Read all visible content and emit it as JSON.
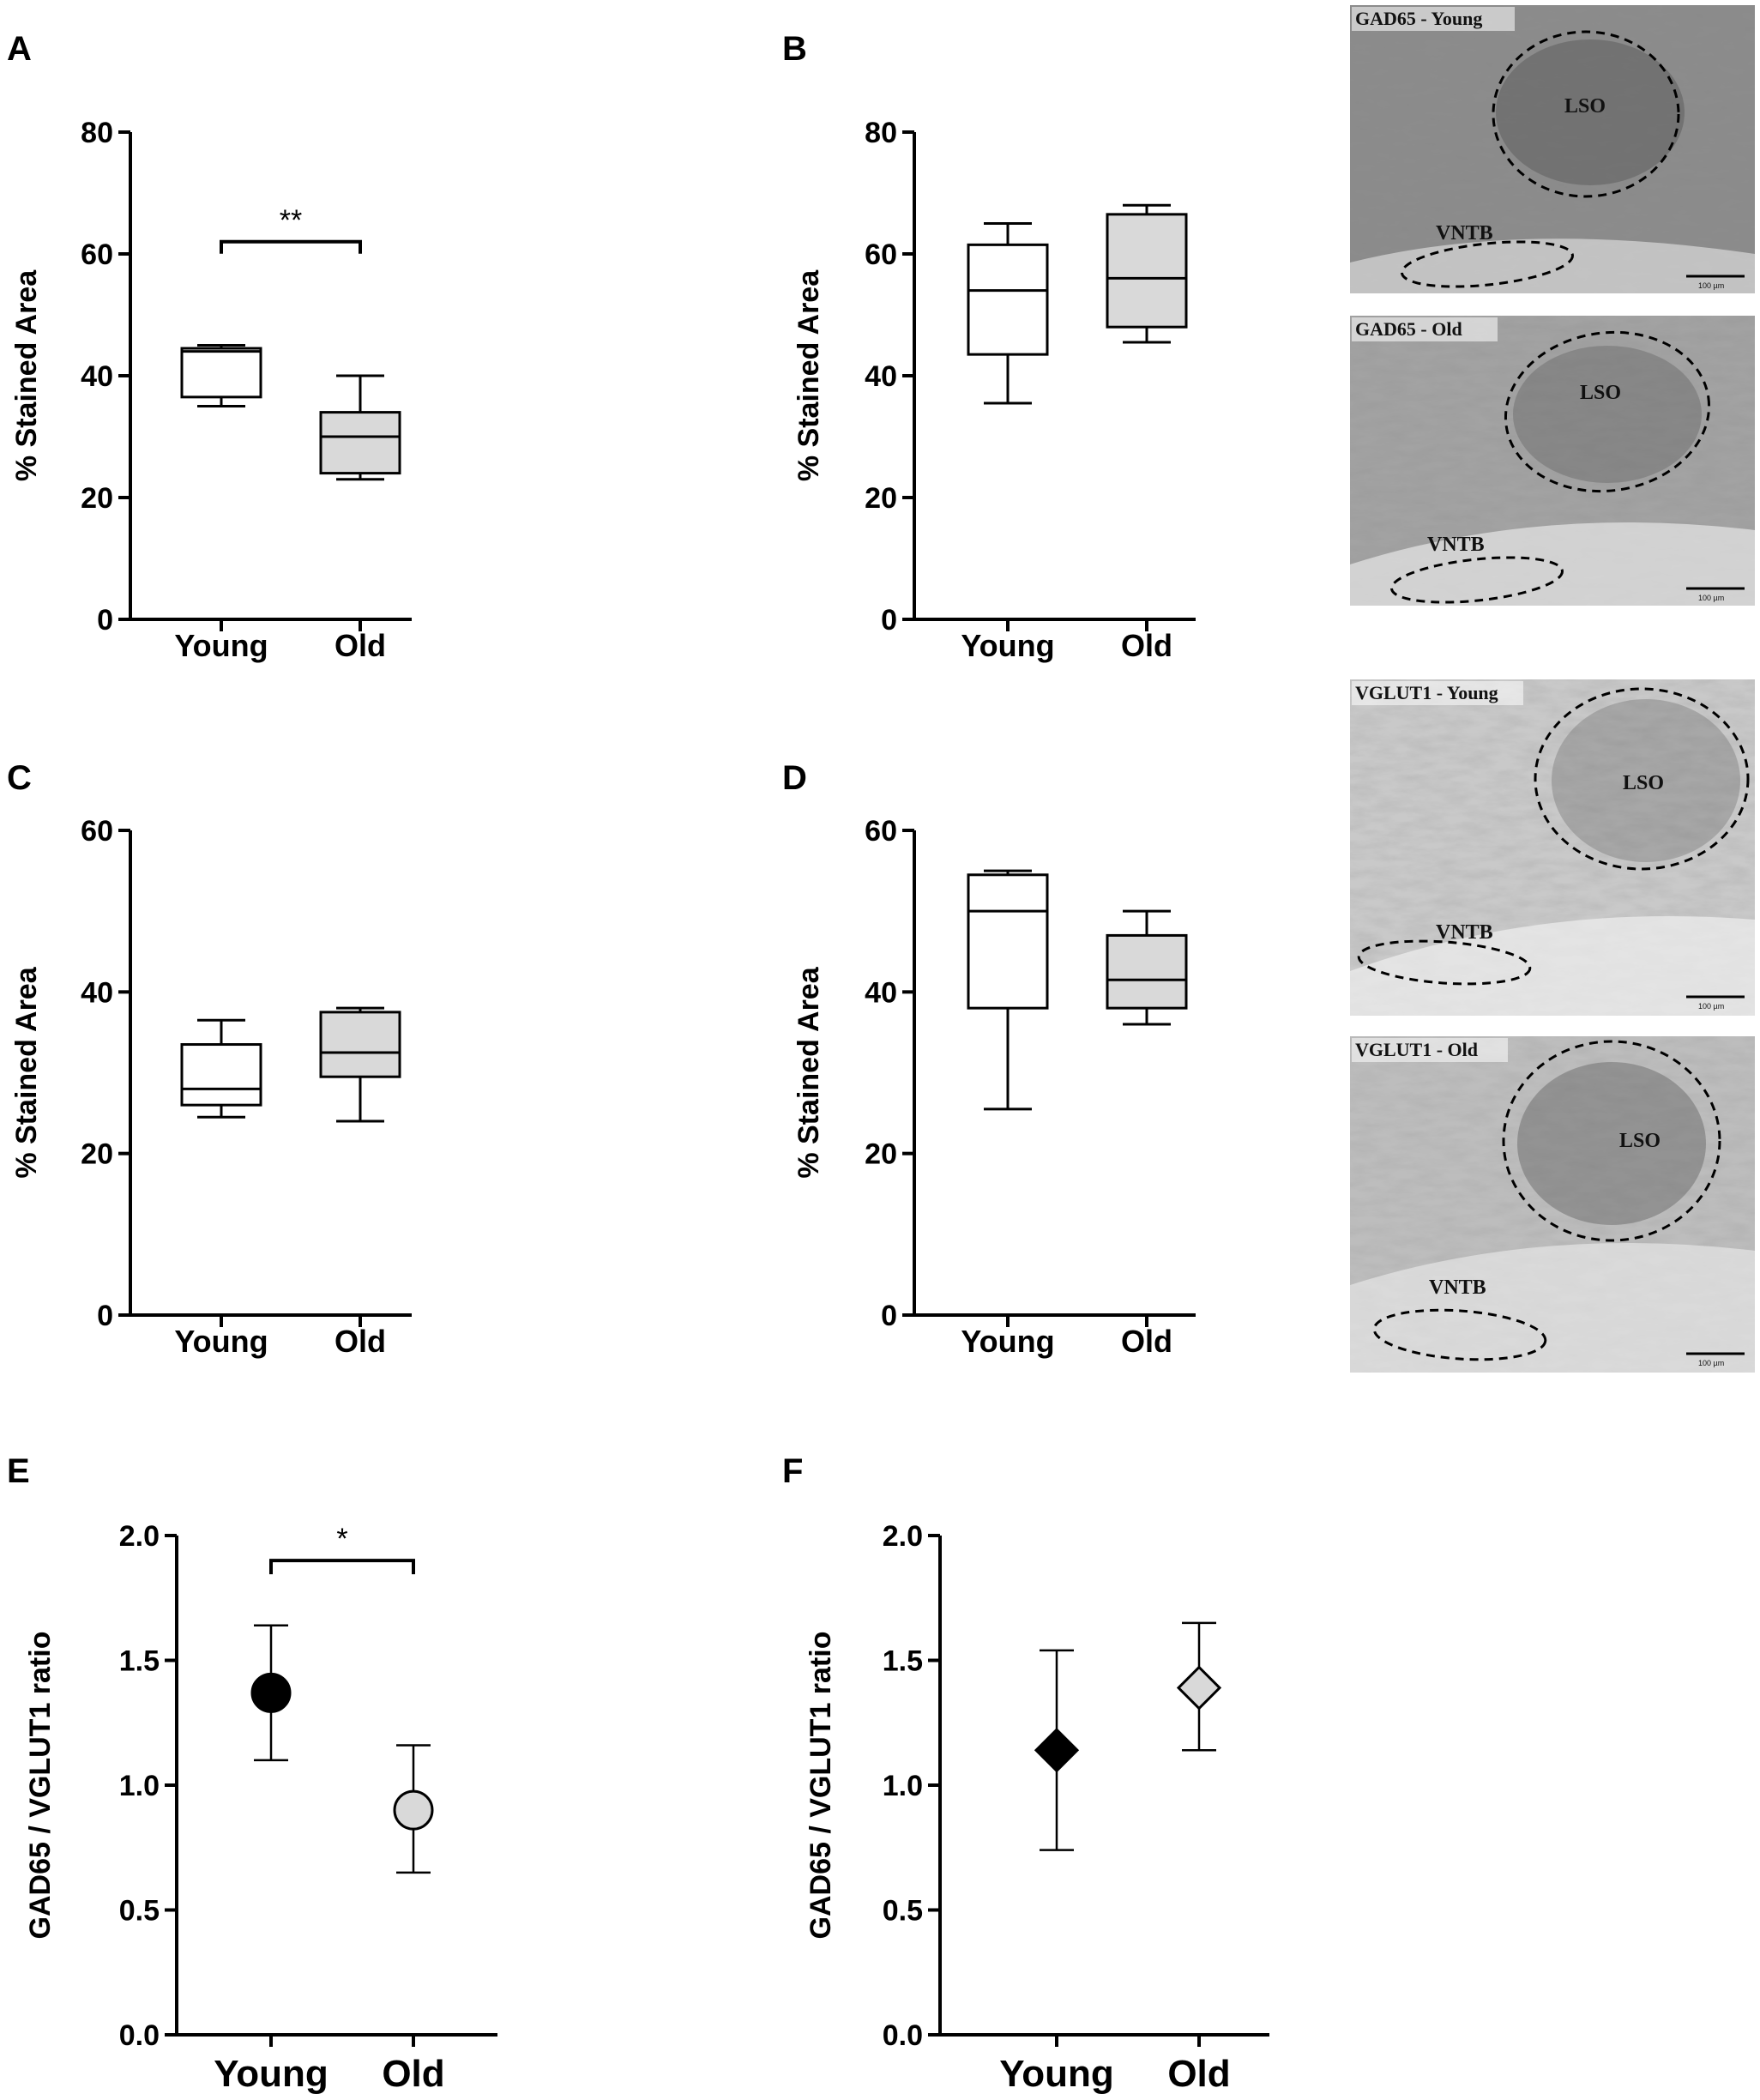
{
  "colors": {
    "young_fill": "#ffffff",
    "old_fill": "#d9d9d9",
    "young_marker": "#000000",
    "old_marker": "#d9d9d9",
    "stroke": "#000000"
  },
  "panels": {
    "A": {
      "letter": "A"
    },
    "B": {
      "letter": "B"
    },
    "C": {
      "letter": "C"
    },
    "D": {
      "letter": "D"
    },
    "E": {
      "letter": "E"
    },
    "F": {
      "letter": "F"
    }
  },
  "images": [
    {
      "title": "GAD65 - Young",
      "lso": "LSO",
      "vntb": "VNTB",
      "scale": "100 µm",
      "tone": "dark"
    },
    {
      "title": "GAD65 - Old",
      "lso": "LSO",
      "vntb": "VNTB",
      "scale": "100 µm",
      "tone": "medium"
    },
    {
      "title": "VGLUT1 - Young",
      "lso": "LSO",
      "vntb": "VNTB",
      "scale": "100 µm",
      "tone": "light"
    },
    {
      "title": "VGLUT1 - Old",
      "lso": "LSO",
      "vntb": "VNTB",
      "scale": "100 µm",
      "tone": "light"
    }
  ],
  "chart_data": [
    {
      "panel": "A",
      "type": "box",
      "ylabel": "% Stained Area",
      "categories": [
        "Young",
        "Old"
      ],
      "ylim": [
        0,
        80
      ],
      "yticks": [
        0,
        20,
        40,
        60,
        80
      ],
      "boxes": [
        {
          "category": "Young",
          "min": 35,
          "q1": 36.5,
          "median": 44,
          "q3": 44.5,
          "max": 45
        },
        {
          "category": "Old",
          "min": 23,
          "q1": 24,
          "median": 30,
          "q3": 34,
          "max": 40
        }
      ],
      "significance": {
        "text": "**",
        "between": [
          "Young",
          "Old"
        ],
        "y": 62
      }
    },
    {
      "panel": "B",
      "type": "box",
      "ylabel": "% Stained Area",
      "categories": [
        "Young",
        "Old"
      ],
      "ylim": [
        0,
        80
      ],
      "yticks": [
        0,
        20,
        40,
        60,
        80
      ],
      "boxes": [
        {
          "category": "Young",
          "min": 35.5,
          "q1": 43.5,
          "median": 54,
          "q3": 61.5,
          "max": 65
        },
        {
          "category": "Old",
          "min": 45.5,
          "q1": 48,
          "median": 56,
          "q3": 66.5,
          "max": 68
        }
      ]
    },
    {
      "panel": "C",
      "type": "box",
      "ylabel": "% Stained Area",
      "categories": [
        "Young",
        "Old"
      ],
      "ylim": [
        0,
        60
      ],
      "yticks": [
        0,
        20,
        40,
        60
      ],
      "boxes": [
        {
          "category": "Young",
          "min": 24.5,
          "q1": 26,
          "median": 28,
          "q3": 33.5,
          "max": 36.5
        },
        {
          "category": "Old",
          "min": 24,
          "q1": 29.5,
          "median": 32.5,
          "q3": 37.5,
          "max": 38
        }
      ]
    },
    {
      "panel": "D",
      "type": "box",
      "ylabel": "% Stained Area",
      "categories": [
        "Young",
        "Old"
      ],
      "ylim": [
        0,
        60
      ],
      "yticks": [
        0,
        20,
        40,
        60
      ],
      "boxes": [
        {
          "category": "Young",
          "min": 25.5,
          "q1": 38,
          "median": 50,
          "q3": 54.5,
          "max": 55
        },
        {
          "category": "Old",
          "min": 36,
          "q1": 38,
          "median": 41.5,
          "q3": 47,
          "max": 50
        }
      ]
    },
    {
      "panel": "E",
      "type": "scatter",
      "marker": "circle",
      "ylabel": "GAD65 / VGLUT1 ratio",
      "categories": [
        "Young",
        "Old"
      ],
      "ylim": [
        0,
        2
      ],
      "yticks": [
        "0.0",
        "0.5",
        "1.0",
        "1.5",
        "2.0"
      ],
      "points": [
        {
          "category": "Young",
          "mean": 1.37,
          "lower": 1.1,
          "upper": 1.64
        },
        {
          "category": "Old",
          "mean": 0.9,
          "lower": 0.65,
          "upper": 1.16
        }
      ],
      "significance": {
        "text": "*",
        "between": [
          "Young",
          "Old"
        ],
        "y": 1.9
      }
    },
    {
      "panel": "F",
      "type": "scatter",
      "marker": "diamond",
      "ylabel": "GAD65 / VGLUT1 ratio",
      "categories": [
        "Young",
        "Old"
      ],
      "ylim": [
        0,
        2
      ],
      "yticks": [
        "0.0",
        "0.5",
        "1.0",
        "1.5",
        "2.0"
      ],
      "points": [
        {
          "category": "Young",
          "mean": 1.14,
          "lower": 0.74,
          "upper": 1.54
        },
        {
          "category": "Old",
          "mean": 1.39,
          "lower": 1.14,
          "upper": 1.65
        }
      ]
    }
  ]
}
